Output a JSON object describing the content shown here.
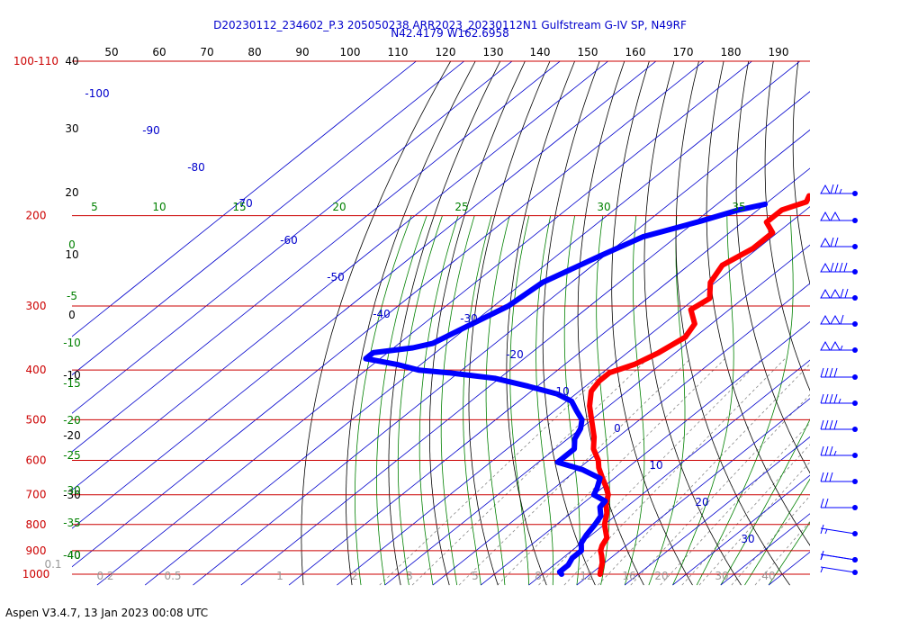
{
  "title_line1": "D20230112_234602_P.3 205050238 ARR2023_20230112N1 Gulfstream G-IV SP, N49RF",
  "title_line2": "N42.4179 W162.6958",
  "footer": "Aspen V3.4.7, 13 Jan 2023  00:08 UTC",
  "colors": {
    "temperature": "#ff0000",
    "dewpoint": "#0000ff",
    "isobar": "#cc0000",
    "isotherm": "#0000cc",
    "dry_adiabat": "#000000",
    "moist_adiabat": "#008000",
    "mixing_ratio": "#888888"
  },
  "chart_data": {
    "type": "skew-t log-p",
    "pressure_range_hpa": [
      1000,
      100
    ],
    "pressure_labels": [
      "100-110",
      "200",
      "300",
      "400",
      "500",
      "600",
      "700",
      "800",
      "900",
      "1000"
    ],
    "isobar_levels_hpa": [
      100,
      200,
      300,
      400,
      500,
      600,
      700,
      800,
      900,
      1000
    ],
    "top_axis_ticks": [
      "50",
      "60",
      "70",
      "80",
      "90",
      "100",
      "110",
      "120",
      "130",
      "140",
      "150",
      "160",
      "170",
      "180",
      "190"
    ],
    "left_axis_ticks": [
      "40",
      "30",
      "20",
      "10",
      "0",
      "-10",
      "-20",
      "-30",
      "-40"
    ],
    "isotherm_labels_c": [
      "-100",
      "-90",
      "-80",
      "-70",
      "-60",
      "-50",
      "-40",
      "-30",
      "-20",
      "-10",
      "0",
      "10",
      "20",
      "30"
    ],
    "moist_adiabat_labels_top": [
      "5",
      "10",
      "15",
      "20",
      "25",
      "30",
      "35"
    ],
    "moist_adiabat_labels_left": [
      "0",
      "-5",
      "-10",
      "-15",
      "-20",
      "-25",
      "-30",
      "-35",
      "-40"
    ],
    "mixing_ratio_labels": [
      "0.1",
      "0.2",
      "0.5",
      "1",
      "2",
      "3",
      "5",
      "8",
      "12",
      "16",
      "20",
      "30",
      "40"
    ],
    "temperature_profile": {
      "pressure_hpa": [
        1000,
        980,
        950,
        920,
        900,
        880,
        850,
        800,
        760,
        730,
        700,
        680,
        650,
        620,
        600,
        570,
        540,
        500,
        470,
        440,
        420,
        405,
        390,
        370,
        345,
        325,
        305,
        290,
        270,
        250,
        232,
        216,
        206,
        195,
        188,
        183
      ],
      "temp_c": [
        2.0,
        1.0,
        -0.5,
        -2.5,
        -4.0,
        -5.0,
        -6.0,
        -10.0,
        -12.5,
        -15.0,
        -17.0,
        -19.0,
        -22.5,
        -26.0,
        -28.0,
        -32.0,
        -35.0,
        -40.0,
        -44.0,
        -47.5,
        -48.5,
        -48.5,
        -45.5,
        -43.5,
        -42.0,
        -43.5,
        -48.0,
        -47.0,
        -51.0,
        -53.0,
        -51.0,
        -51.0,
        -55.0,
        -55.0,
        -52.0,
        -53.0
      ]
    },
    "dewpoint_profile": {
      "pressure_hpa": [
        1000,
        990,
        960,
        930,
        900,
        870,
        840,
        800,
        770,
        740,
        720,
        700,
        680,
        650,
        625,
        605,
        590,
        570,
        545,
        520,
        500,
        480,
        460,
        445,
        430,
        415,
        405,
        400,
        390,
        380,
        370,
        362,
        355,
        335,
        300,
        270,
        240,
        220,
        205,
        195,
        190
      ],
      "dewpoint_c": [
        -6.0,
        -7.0,
        -7.0,
        -8.0,
        -8.0,
        -10.0,
        -11.0,
        -12.0,
        -13.0,
        -15.5,
        -16.0,
        -20.0,
        -21.0,
        -23.0,
        -29.0,
        -36.0,
        -36.0,
        -36.0,
        -38.5,
        -40.0,
        -42.0,
        -45.5,
        -49.0,
        -54.0,
        -62.0,
        -71.0,
        -82.0,
        -89.0,
        -95.0,
        -103.0,
        -103.0,
        -96.0,
        -93.0,
        -91.0,
        -87.0,
        -86.0,
        -81.0,
        -77.0,
        -69.0,
        -64.0,
        -60.0
      ]
    },
    "wind_barbs": [
      {
        "pressure_hpa": 185,
        "speed_kt": 75
      },
      {
        "pressure_hpa": 200,
        "speed_kt": 100
      },
      {
        "pressure_hpa": 225,
        "speed_kt": 70
      },
      {
        "pressure_hpa": 250,
        "speed_kt": 90
      },
      {
        "pressure_hpa": 280,
        "speed_kt": 120
      },
      {
        "pressure_hpa": 310,
        "speed_kt": 110
      },
      {
        "pressure_hpa": 345,
        "speed_kt": 105
      },
      {
        "pressure_hpa": 385,
        "speed_kt": 40
      },
      {
        "pressure_hpa": 430,
        "speed_kt": 45
      },
      {
        "pressure_hpa": 470,
        "speed_kt": 40
      },
      {
        "pressure_hpa": 520,
        "speed_kt": 35
      },
      {
        "pressure_hpa": 570,
        "speed_kt": 30
      },
      {
        "pressure_hpa": 640,
        "speed_kt": 20
      },
      {
        "pressure_hpa": 730,
        "speed_kt": 15
      },
      {
        "pressure_hpa": 850,
        "speed_kt": 10
      },
      {
        "pressure_hpa": 940,
        "speed_kt": 5
      },
      {
        "pressure_hpa": 1000,
        "speed_kt": 5
      }
    ]
  }
}
